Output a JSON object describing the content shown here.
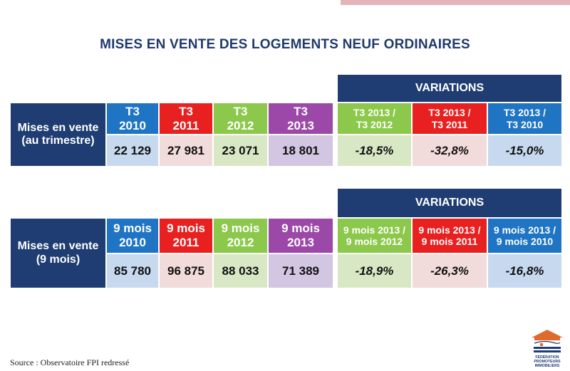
{
  "title": "MISES EN VENTE DES LOGEMENTS NEUF ORDINAIRES",
  "table1": {
    "row_label": "Mises en vente\n(au trimestre)",
    "periods": [
      "T3\n2010",
      "T3\n2011",
      "T3\n2012",
      "T3\n2013"
    ],
    "values": [
      "22 129",
      "27 981",
      "23 071",
      "18 801"
    ],
    "variations_title": "VARIATIONS",
    "variation_labels": [
      "T3 2013 /\nT3 2012",
      "T3 2013 /\nT3 2011",
      "T3 2013 /\nT3 2010"
    ],
    "variation_values": [
      "-18,5%",
      "-32,8%",
      "-15,0%"
    ]
  },
  "table2": {
    "row_label": "Mises en vente\n(9 mois)",
    "periods": [
      "9 mois\n2010",
      "9 mois\n2011",
      "9 mois\n2012",
      "9 mois\n2013"
    ],
    "values": [
      "85 780",
      "96 875",
      "88 033",
      "71 389"
    ],
    "variations_title": "VARIATIONS",
    "variation_labels": [
      "9 mois 2013 /\n9 mois 2012",
      "9 mois 2013 /\n9 mois 2011",
      "9 mois 2013 /\n9 mois 2010"
    ],
    "variation_values": [
      "-18,9%",
      "-26,3%",
      "-16,8%"
    ]
  },
  "colors": {
    "navy": "#1f3d72",
    "blue": "#1f75c4",
    "blue_light": "#c6d9ef",
    "red": "#e82020",
    "red_light": "#f2dcdb",
    "green": "#8cc84b",
    "green_light": "#d8e8c4",
    "purple": "#9c48a8",
    "purple_light": "#d3c6e2"
  },
  "source": "Source : Observatoire FPI redressé",
  "logo": {
    "icon": "fpi-house-logo-icon",
    "text": "FÉDÉRATION PROMOTEURS IMMOBILIERS"
  }
}
